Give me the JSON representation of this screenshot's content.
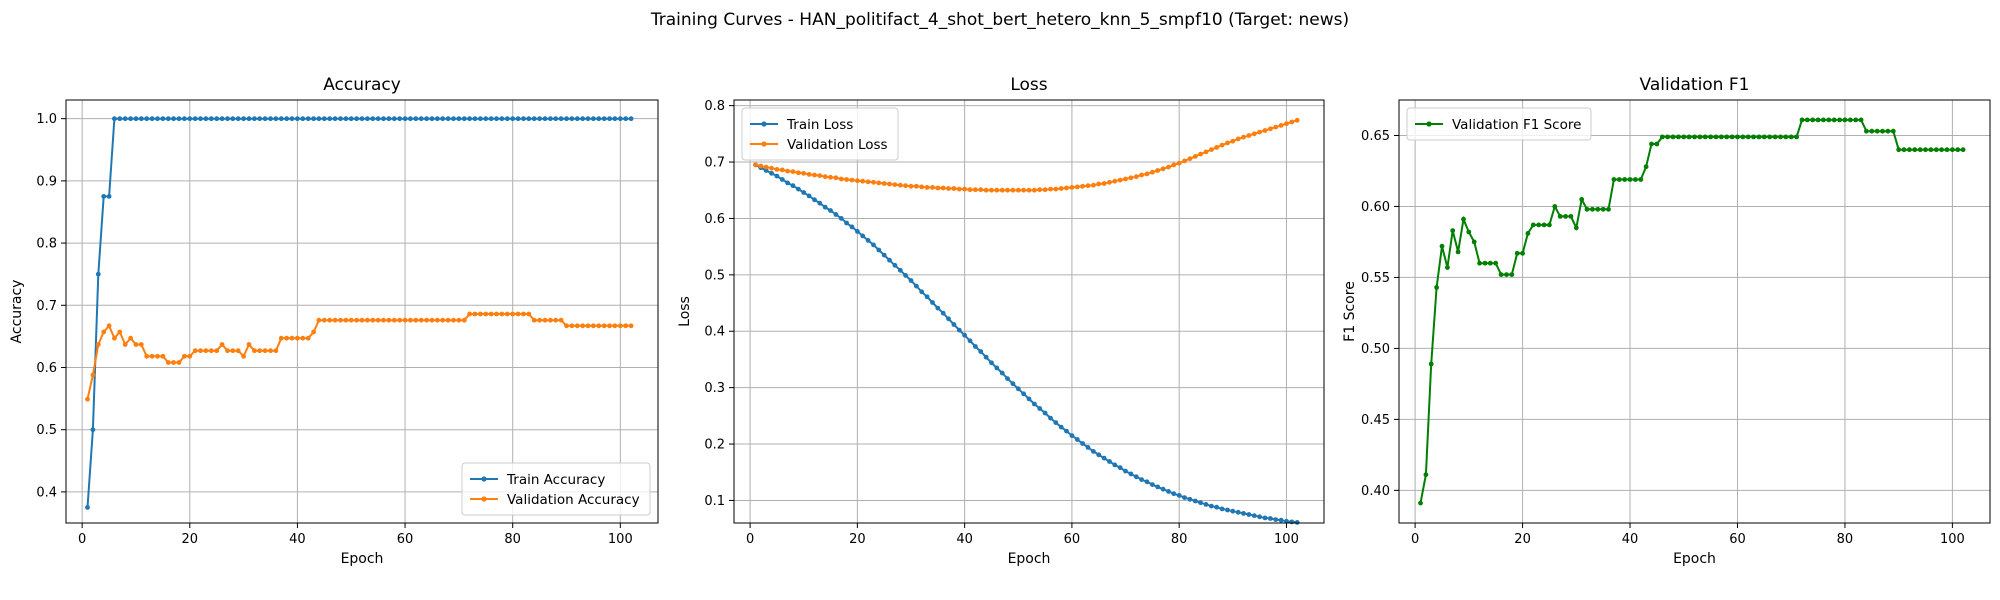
{
  "suptitle": "Training Curves - HAN_politifact_4_shot_bert_hetero_knn_5_smpf10 (Target: news)",
  "chart_data": [
    {
      "type": "line",
      "title": "Accuracy",
      "xlabel": "Epoch",
      "ylabel": "Accuracy",
      "xlim": [
        -3,
        107
      ],
      "ylim": [
        0.35,
        1.03
      ],
      "xticks": [
        0,
        20,
        40,
        60,
        80,
        100
      ],
      "yticks": [
        0.4,
        0.5,
        0.6,
        0.7,
        0.8,
        0.9,
        1.0
      ],
      "ytick_labels": [
        "0.4",
        "0.5",
        "0.6",
        "0.7",
        "0.8",
        "0.9",
        "1.0"
      ],
      "grid": true,
      "legend": "lower-right",
      "series": [
        {
          "name": "Train Accuracy",
          "color": "#1f77b4",
          "x_start": 1,
          "values": [
            0.375,
            0.5,
            0.75,
            0.875,
            0.875,
            1,
            1,
            1,
            1,
            1,
            1,
            1,
            1,
            1,
            1,
            1,
            1,
            1,
            1,
            1,
            1,
            1,
            1,
            1,
            1,
            1,
            1,
            1,
            1,
            1,
            1,
            1,
            1,
            1,
            1,
            1,
            1,
            1,
            1,
            1,
            1,
            1,
            1,
            1,
            1,
            1,
            1,
            1,
            1,
            1,
            1,
            1,
            1,
            1,
            1,
            1,
            1,
            1,
            1,
            1,
            1,
            1,
            1,
            1,
            1,
            1,
            1,
            1,
            1,
            1,
            1,
            1,
            1,
            1,
            1,
            1,
            1,
            1,
            1,
            1,
            1,
            1,
            1,
            1,
            1,
            1,
            1,
            1,
            1,
            1,
            1,
            1,
            1,
            1,
            1,
            1,
            1,
            1,
            1,
            1,
            1,
            1
          ]
        },
        {
          "name": "Validation Accuracy",
          "color": "#ff7f0e",
          "x_start": 1,
          "values": [
            0.549,
            0.588,
            0.637,
            0.657,
            0.667,
            0.647,
            0.657,
            0.637,
            0.647,
            0.637,
            0.637,
            0.618,
            0.618,
            0.618,
            0.618,
            0.608,
            0.608,
            0.608,
            0.618,
            0.618,
            0.627,
            0.627,
            0.627,
            0.627,
            0.627,
            0.637,
            0.627,
            0.627,
            0.627,
            0.618,
            0.637,
            0.627,
            0.627,
            0.627,
            0.627,
            0.627,
            0.647,
            0.647,
            0.647,
            0.647,
            0.647,
            0.647,
            0.657,
            0.676,
            0.676,
            0.676,
            0.676,
            0.676,
            0.676,
            0.676,
            0.676,
            0.676,
            0.676,
            0.676,
            0.676,
            0.676,
            0.676,
            0.676,
            0.676,
            0.676,
            0.676,
            0.676,
            0.676,
            0.676,
            0.676,
            0.676,
            0.676,
            0.676,
            0.676,
            0.676,
            0.676,
            0.686,
            0.686,
            0.686,
            0.686,
            0.686,
            0.686,
            0.686,
            0.686,
            0.686,
            0.686,
            0.686,
            0.686,
            0.676,
            0.676,
            0.676,
            0.676,
            0.676,
            0.676,
            0.667,
            0.667,
            0.667,
            0.667,
            0.667,
            0.667,
            0.667,
            0.667,
            0.667,
            0.667,
            0.667,
            0.667,
            0.667
          ]
        }
      ]
    },
    {
      "type": "line",
      "title": "Loss",
      "xlabel": "Epoch",
      "ylabel": "Loss",
      "xlim": [
        -3,
        107
      ],
      "ylim": [
        0.06,
        0.81
      ],
      "xticks": [
        0,
        20,
        40,
        60,
        80,
        100
      ],
      "yticks": [
        0.1,
        0.2,
        0.3,
        0.4,
        0.5,
        0.6,
        0.7,
        0.8
      ],
      "ytick_labels": [
        "0.1",
        "0.2",
        "0.3",
        "0.4",
        "0.5",
        "0.6",
        "0.7",
        "0.8"
      ],
      "grid": true,
      "legend": "upper-left",
      "series": [
        {
          "name": "Train Loss",
          "color": "#1f77b4",
          "x_start": 1,
          "values": [
            0.695,
            0.69,
            0.685,
            0.68,
            0.675,
            0.669,
            0.663,
            0.658,
            0.652,
            0.646,
            0.64,
            0.633,
            0.627,
            0.62,
            0.614,
            0.607,
            0.6,
            0.592,
            0.585,
            0.577,
            0.569,
            0.561,
            0.553,
            0.544,
            0.535,
            0.526,
            0.517,
            0.508,
            0.499,
            0.49,
            0.48,
            0.47,
            0.461,
            0.451,
            0.441,
            0.432,
            0.422,
            0.412,
            0.402,
            0.393,
            0.383,
            0.373,
            0.364,
            0.354,
            0.344,
            0.335,
            0.326,
            0.316,
            0.307,
            0.298,
            0.289,
            0.28,
            0.271,
            0.263,
            0.255,
            0.246,
            0.238,
            0.23,
            0.223,
            0.215,
            0.208,
            0.201,
            0.194,
            0.187,
            0.181,
            0.175,
            0.169,
            0.163,
            0.158,
            0.152,
            0.147,
            0.142,
            0.137,
            0.133,
            0.128,
            0.124,
            0.12,
            0.116,
            0.112,
            0.109,
            0.105,
            0.102,
            0.099,
            0.096,
            0.093,
            0.09,
            0.088,
            0.085,
            0.083,
            0.081,
            0.079,
            0.077,
            0.075,
            0.073,
            0.071,
            0.069,
            0.068,
            0.066,
            0.065,
            0.063,
            0.062,
            0.061
          ]
        },
        {
          "name": "Validation Loss",
          "color": "#ff7f0e",
          "x_start": 1,
          "values": [
            0.695,
            0.693,
            0.691,
            0.689,
            0.687,
            0.686,
            0.684,
            0.683,
            0.681,
            0.68,
            0.678,
            0.677,
            0.676,
            0.674,
            0.673,
            0.672,
            0.67,
            0.669,
            0.668,
            0.667,
            0.666,
            0.665,
            0.664,
            0.663,
            0.662,
            0.661,
            0.66,
            0.659,
            0.658,
            0.657,
            0.657,
            0.656,
            0.655,
            0.655,
            0.654,
            0.654,
            0.653,
            0.653,
            0.652,
            0.652,
            0.651,
            0.651,
            0.651,
            0.65,
            0.65,
            0.65,
            0.65,
            0.65,
            0.65,
            0.65,
            0.65,
            0.65,
            0.65,
            0.651,
            0.651,
            0.652,
            0.652,
            0.653,
            0.654,
            0.655,
            0.656,
            0.657,
            0.658,
            0.659,
            0.661,
            0.662,
            0.664,
            0.666,
            0.668,
            0.67,
            0.672,
            0.674,
            0.677,
            0.679,
            0.682,
            0.685,
            0.688,
            0.691,
            0.695,
            0.698,
            0.702,
            0.706,
            0.71,
            0.714,
            0.718,
            0.722,
            0.726,
            0.73,
            0.734,
            0.737,
            0.741,
            0.744,
            0.747,
            0.75,
            0.753,
            0.756,
            0.759,
            0.762,
            0.765,
            0.768,
            0.771,
            0.774
          ]
        }
      ]
    },
    {
      "type": "line",
      "title": "Validation F1",
      "xlabel": "Epoch",
      "ylabel": "F1 Score",
      "xlim": [
        -3,
        107
      ],
      "ylim": [
        0.377,
        0.675
      ],
      "xticks": [
        0,
        20,
        40,
        60,
        80,
        100
      ],
      "yticks": [
        0.4,
        0.45,
        0.5,
        0.55,
        0.6,
        0.65
      ],
      "ytick_labels": [
        "0.40",
        "0.45",
        "0.50",
        "0.55",
        "0.60",
        "0.65"
      ],
      "grid": true,
      "legend": "upper-left",
      "series": [
        {
          "name": "Validation F1 Score",
          "color": "#008000",
          "x_start": 1,
          "values": [
            0.391,
            0.411,
            0.489,
            0.543,
            0.572,
            0.557,
            0.583,
            0.568,
            0.591,
            0.582,
            0.575,
            0.56,
            0.56,
            0.56,
            0.56,
            0.552,
            0.552,
            0.552,
            0.567,
            0.567,
            0.581,
            0.587,
            0.587,
            0.587,
            0.587,
            0.6,
            0.593,
            0.593,
            0.593,
            0.585,
            0.605,
            0.598,
            0.598,
            0.598,
            0.598,
            0.598,
            0.619,
            0.619,
            0.619,
            0.619,
            0.619,
            0.619,
            0.628,
            0.644,
            0.644,
            0.649,
            0.649,
            0.649,
            0.649,
            0.649,
            0.649,
            0.649,
            0.649,
            0.649,
            0.649,
            0.649,
            0.649,
            0.649,
            0.649,
            0.649,
            0.649,
            0.649,
            0.649,
            0.649,
            0.649,
            0.649,
            0.649,
            0.649,
            0.649,
            0.649,
            0.649,
            0.661,
            0.661,
            0.661,
            0.661,
            0.661,
            0.661,
            0.661,
            0.661,
            0.661,
            0.661,
            0.661,
            0.661,
            0.653,
            0.653,
            0.653,
            0.653,
            0.653,
            0.653,
            0.64,
            0.64,
            0.64,
            0.64,
            0.64,
            0.64,
            0.64,
            0.64,
            0.64,
            0.64,
            0.64,
            0.64,
            0.64
          ]
        }
      ]
    }
  ]
}
